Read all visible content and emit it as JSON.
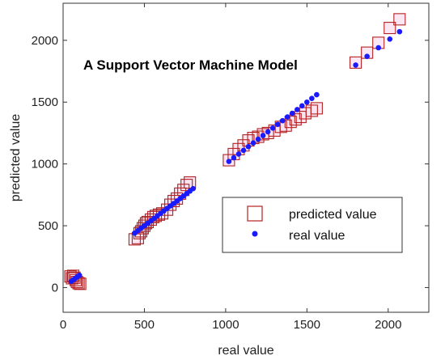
{
  "chart_data": {
    "type": "scatter",
    "title": "",
    "annotation": "A Support Vector Machine Model",
    "xlabel": "real value",
    "ylabel": "predicted value",
    "xlim": [
      0,
      2250
    ],
    "ylim": [
      -200,
      2300
    ],
    "xticks": [
      0,
      500,
      1000,
      1500,
      2000
    ],
    "yticks": [
      0,
      500,
      1000,
      1500,
      2000
    ],
    "grid": false,
    "legend_position": "lower-right",
    "colors": {
      "predicted": "#b22222",
      "real": "#1a1aff",
      "axis": "#333333"
    },
    "series": [
      {
        "name": "predicted value",
        "marker": "square",
        "points": [
          [
            45,
            90
          ],
          [
            55,
            75
          ],
          [
            62,
            95
          ],
          [
            70,
            80
          ],
          [
            78,
            60
          ],
          [
            85,
            45
          ],
          [
            95,
            35
          ],
          [
            105,
            30
          ],
          [
            440,
            390
          ],
          [
            460,
            400
          ],
          [
            470,
            440
          ],
          [
            480,
            455
          ],
          [
            490,
            480
          ],
          [
            500,
            500
          ],
          [
            510,
            520
          ],
          [
            520,
            530
          ],
          [
            540,
            550
          ],
          [
            555,
            570
          ],
          [
            570,
            580
          ],
          [
            590,
            590
          ],
          [
            610,
            600
          ],
          [
            640,
            630
          ],
          [
            660,
            670
          ],
          [
            680,
            700
          ],
          [
            700,
            720
          ],
          [
            720,
            760
          ],
          [
            740,
            790
          ],
          [
            760,
            830
          ],
          [
            780,
            850
          ],
          [
            1020,
            1030
          ],
          [
            1050,
            1080
          ],
          [
            1080,
            1120
          ],
          [
            1110,
            1150
          ],
          [
            1140,
            1190
          ],
          [
            1170,
            1210
          ],
          [
            1200,
            1220
          ],
          [
            1230,
            1240
          ],
          [
            1260,
            1250
          ],
          [
            1300,
            1270
          ],
          [
            1340,
            1300
          ],
          [
            1370,
            1310
          ],
          [
            1400,
            1340
          ],
          [
            1430,
            1360
          ],
          [
            1460,
            1380
          ],
          [
            1490,
            1410
          ],
          [
            1530,
            1430
          ],
          [
            1560,
            1450
          ],
          [
            1800,
            1820
          ],
          [
            1870,
            1900
          ],
          [
            1940,
            1980
          ],
          [
            2010,
            2100
          ],
          [
            2070,
            2170
          ]
        ]
      },
      {
        "name": "real value",
        "marker": "dot",
        "points": [
          [
            50,
            50
          ],
          [
            62,
            62
          ],
          [
            75,
            75
          ],
          [
            88,
            88
          ],
          [
            100,
            100
          ],
          [
            440,
            440
          ],
          [
            460,
            460
          ],
          [
            480,
            480
          ],
          [
            500,
            500
          ],
          [
            520,
            520
          ],
          [
            540,
            540
          ],
          [
            560,
            560
          ],
          [
            580,
            580
          ],
          [
            600,
            600
          ],
          [
            620,
            620
          ],
          [
            640,
            640
          ],
          [
            660,
            660
          ],
          [
            680,
            680
          ],
          [
            700,
            700
          ],
          [
            720,
            720
          ],
          [
            740,
            740
          ],
          [
            760,
            760
          ],
          [
            780,
            780
          ],
          [
            800,
            800
          ],
          [
            1020,
            1020
          ],
          [
            1050,
            1050
          ],
          [
            1080,
            1080
          ],
          [
            1110,
            1110
          ],
          [
            1140,
            1140
          ],
          [
            1170,
            1170
          ],
          [
            1200,
            1200
          ],
          [
            1230,
            1230
          ],
          [
            1260,
            1260
          ],
          [
            1290,
            1290
          ],
          [
            1320,
            1320
          ],
          [
            1350,
            1350
          ],
          [
            1380,
            1380
          ],
          [
            1410,
            1410
          ],
          [
            1440,
            1440
          ],
          [
            1470,
            1470
          ],
          [
            1500,
            1500
          ],
          [
            1530,
            1530
          ],
          [
            1560,
            1560
          ],
          [
            1800,
            1800
          ],
          [
            1870,
            1870
          ],
          [
            1940,
            1940
          ],
          [
            2010,
            2010
          ],
          [
            2070,
            2070
          ]
        ]
      }
    ]
  }
}
